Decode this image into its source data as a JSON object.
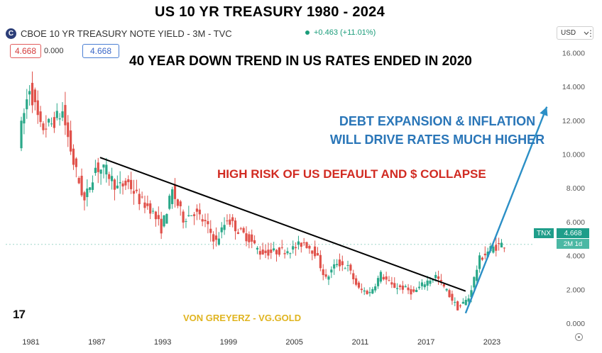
{
  "title": "US 10 YR TREASURY  1980 - 2024",
  "header": {
    "symbol_icon": "C",
    "symbol_name": "CBOE 10 YR TREASURY NOTE YIELD - 3M - TVC",
    "change": "+0.463 (+11.01%)",
    "currency": "USD",
    "sell": "4.668",
    "spread": "0.000",
    "buy": "4.668"
  },
  "annotations": {
    "headline": "40 YEAR DOWN TREND IN US RATES ENDED IN 2020",
    "debt_line1": "DEBT EXPANSION & INFLATION",
    "debt_line2": "WILL DRIVE RATES MUCH HIGHER",
    "risk": "HIGH RISK OF US DEFAULT AND $ COLLAPSE",
    "watermark": "VON GREYERZ - VG.GOLD",
    "tv_logo": "17"
  },
  "price_tag": {
    "symbol": "TNX",
    "value": "4.668",
    "time": "2M 1d"
  },
  "colors": {
    "up": "#2aa889",
    "down": "#e0514a",
    "trend": "#000000",
    "projection": "#2b8fc6",
    "price_line": "#9fd5c8",
    "risk_text": "#d12b22",
    "debt_text": "#2a76b8"
  },
  "icons": {
    "currency_dropdown": "chevron-down-icon",
    "menu": "more-icon",
    "reset": "reset-icon"
  },
  "chart_data": {
    "type": "candlestick",
    "title": "US 10 YR TREASURY  1980 - 2024",
    "x_tick_labels": [
      "1981",
      "1987",
      "1993",
      "1999",
      "2005",
      "2011",
      "2017",
      "2023"
    ],
    "y_tick_labels": [
      "0.000",
      "2.000",
      "4.000",
      "6.000",
      "8.000",
      "10.000",
      "12.000",
      "14.000",
      "16.000"
    ],
    "ylim": [
      -0.5,
      16.6
    ],
    "xlim": [
      1978.7,
      2028.5
    ],
    "current_value": 4.668,
    "series": [
      {
        "name": "10Y yield (approx. yearly path)",
        "x": [
          1980,
          1981,
          1982,
          1983,
          1984,
          1985,
          1986,
          1987,
          1988,
          1989,
          1990,
          1991,
          1992,
          1993,
          1994,
          1995,
          1996,
          1997,
          1998,
          1999,
          2000,
          2001,
          2002,
          2003,
          2004,
          2005,
          2006,
          2007,
          2008,
          2009,
          2010,
          2011,
          2012,
          2013,
          2014,
          2015,
          2016,
          2017,
          2018,
          2019,
          2020,
          2021,
          2022,
          2023,
          2024
        ],
        "y": [
          10.8,
          14.0,
          11.5,
          11.8,
          12.5,
          9.5,
          7.2,
          9.2,
          9.0,
          8.0,
          8.3,
          7.3,
          6.8,
          5.6,
          7.8,
          6.2,
          6.6,
          5.9,
          4.8,
          6.2,
          5.5,
          5.0,
          4.2,
          4.2,
          4.3,
          4.4,
          4.8,
          4.2,
          2.6,
          3.6,
          3.3,
          2.0,
          1.8,
          2.9,
          2.2,
          2.1,
          1.8,
          2.4,
          2.8,
          1.9,
          0.9,
          1.5,
          3.8,
          4.4,
          4.67
        ]
      },
      {
        "name": "Downtrend line",
        "x": [
          1987.3,
          2020.6
        ],
        "y": [
          9.8,
          1.9
        ]
      },
      {
        "name": "Projection",
        "x": [
          2020.6,
          2028.0
        ],
        "y": [
          0.6,
          12.8
        ]
      }
    ]
  }
}
